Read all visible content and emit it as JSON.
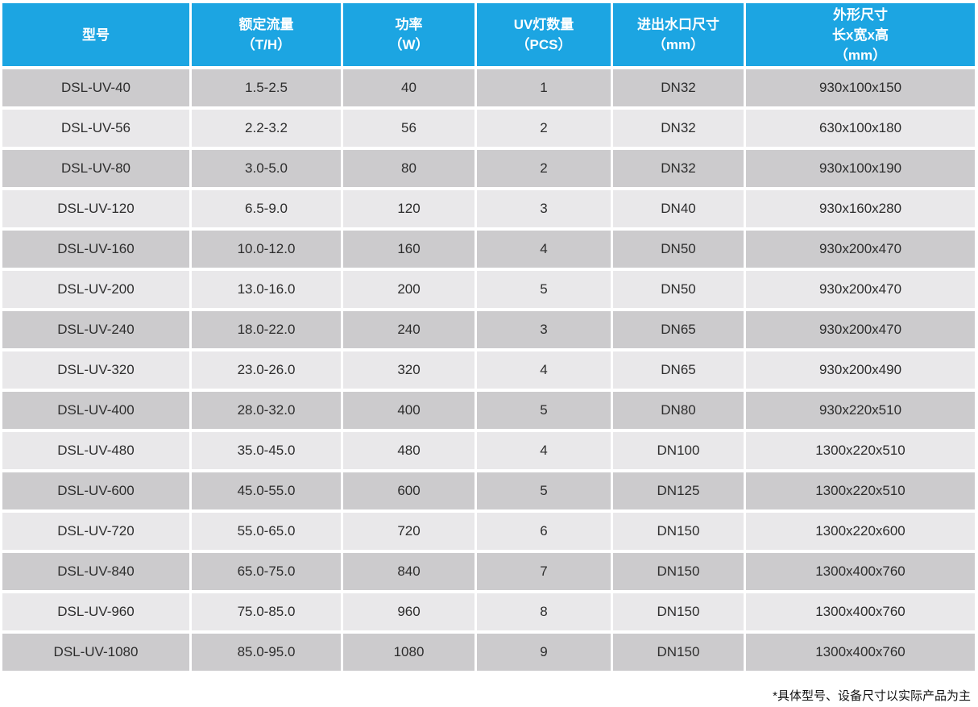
{
  "chart_data": {
    "type": "table",
    "columns": [
      {
        "id": "model",
        "label": "型号",
        "label_lines": [
          "型号"
        ]
      },
      {
        "id": "rated_flow",
        "label": "额定流量（T/H）",
        "label_lines": [
          "额定流量",
          "（T/H）"
        ]
      },
      {
        "id": "power",
        "label": "功率（W）",
        "label_lines": [
          "功率",
          "（W）"
        ]
      },
      {
        "id": "uv_lamp_qty",
        "label": "UV灯数量（PCS）",
        "label_lines": [
          "UV灯数量",
          "（PCS）"
        ]
      },
      {
        "id": "port_size",
        "label": "进出水口尺寸（mm）",
        "label_lines": [
          "进出水口尺寸",
          "（mm）"
        ]
      },
      {
        "id": "dimensions",
        "label": "外形尺寸 长x宽x高（mm）",
        "label_lines": [
          "外形尺寸",
          "长x宽x高",
          "（mm）"
        ]
      }
    ],
    "rows": [
      [
        "DSL-UV-40",
        "1.5-2.5",
        "40",
        "1",
        "DN32",
        "930x100x150"
      ],
      [
        "DSL-UV-56",
        "2.2-3.2",
        "56",
        "2",
        "DN32",
        "630x100x180"
      ],
      [
        "DSL-UV-80",
        "3.0-5.0",
        "80",
        "2",
        "DN32",
        "930x100x190"
      ],
      [
        "DSL-UV-120",
        "6.5-9.0",
        "120",
        "3",
        "DN40",
        "930x160x280"
      ],
      [
        "DSL-UV-160",
        "10.0-12.0",
        "160",
        "4",
        "DN50",
        "930x200x470"
      ],
      [
        "DSL-UV-200",
        "13.0-16.0",
        "200",
        "5",
        "DN50",
        "930x200x470"
      ],
      [
        "DSL-UV-240",
        "18.0-22.0",
        "240",
        "3",
        "DN65",
        "930x200x470"
      ],
      [
        "DSL-UV-320",
        "23.0-26.0",
        "320",
        "4",
        "DN65",
        "930x200x490"
      ],
      [
        "DSL-UV-400",
        "28.0-32.0",
        "400",
        "5",
        "DN80",
        "930x220x510"
      ],
      [
        "DSL-UV-480",
        "35.0-45.0",
        "480",
        "4",
        "DN100",
        "1300x220x510"
      ],
      [
        "DSL-UV-600",
        "45.0-55.0",
        "600",
        "5",
        "DN125",
        "1300x220x510"
      ],
      [
        "DSL-UV-720",
        "55.0-65.0",
        "720",
        "6",
        "DN150",
        "1300x220x600"
      ],
      [
        "DSL-UV-840",
        "65.0-75.0",
        "840",
        "7",
        "DN150",
        "1300x400x760"
      ],
      [
        "DSL-UV-960",
        "75.0-85.0",
        "960",
        "8",
        "DN150",
        "1300x400x760"
      ],
      [
        "DSL-UV-1080",
        "85.0-95.0",
        "1080",
        "9",
        "DN150",
        "1300x400x760"
      ]
    ]
  },
  "footnote": "*具体型号、设备尺寸以实际产品为主",
  "colors": {
    "header_bg": "#1CA5E2",
    "header_text": "#FFFFFF",
    "row_dark_bg": "#CCCBCD",
    "row_light_bg": "#E9E8EA",
    "cell_text": "#2D2D2D",
    "page_bg": "#FFFFFF",
    "footnote_text": "#121212"
  }
}
